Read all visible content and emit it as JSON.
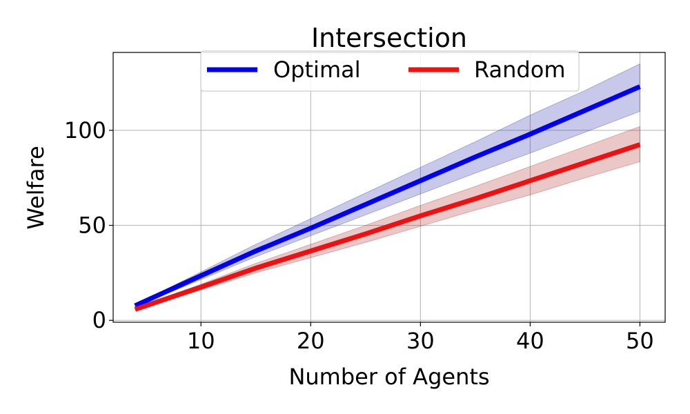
{
  "chart_data": {
    "type": "line",
    "title": "Intersection",
    "xlabel": "Number of Agents",
    "ylabel": "Welfare",
    "xlim": [
      2,
      52.3
    ],
    "ylim": [
      -1,
      141
    ],
    "xticks": [
      10,
      20,
      30,
      40,
      50
    ],
    "yticks": [
      0,
      50,
      100
    ],
    "grid": true,
    "legend_position": "top-center",
    "x": [
      4,
      10,
      15,
      20,
      25,
      30,
      35,
      40,
      45,
      50
    ],
    "series": [
      {
        "name": "Optimal",
        "color": "#0000ee",
        "band_color": "#2222aa",
        "values": [
          7.7,
          23.5,
          36.5,
          48.5,
          61,
          73.5,
          86,
          98,
          110.5,
          123
        ],
        "lower": [
          7.1,
          21.5,
          33.5,
          44.5,
          55.5,
          66.5,
          77.5,
          88,
          99,
          110
        ],
        "upper": [
          8.3,
          25.5,
          40,
          53.5,
          67,
          80.5,
          94,
          108,
          121,
          135
        ]
      },
      {
        "name": "Random",
        "color": "#ee1111",
        "band_color": "#aa2222",
        "values": [
          5.8,
          17.5,
          27.5,
          36.5,
          45.5,
          55,
          64,
          73.5,
          83,
          92.5
        ],
        "lower": [
          5.3,
          16,
          25,
          33,
          41,
          49.5,
          58,
          66,
          75,
          83.5
        ],
        "upper": [
          6.3,
          19,
          30,
          40,
          50,
          60.5,
          70.5,
          81,
          91.5,
          102
        ]
      }
    ]
  }
}
